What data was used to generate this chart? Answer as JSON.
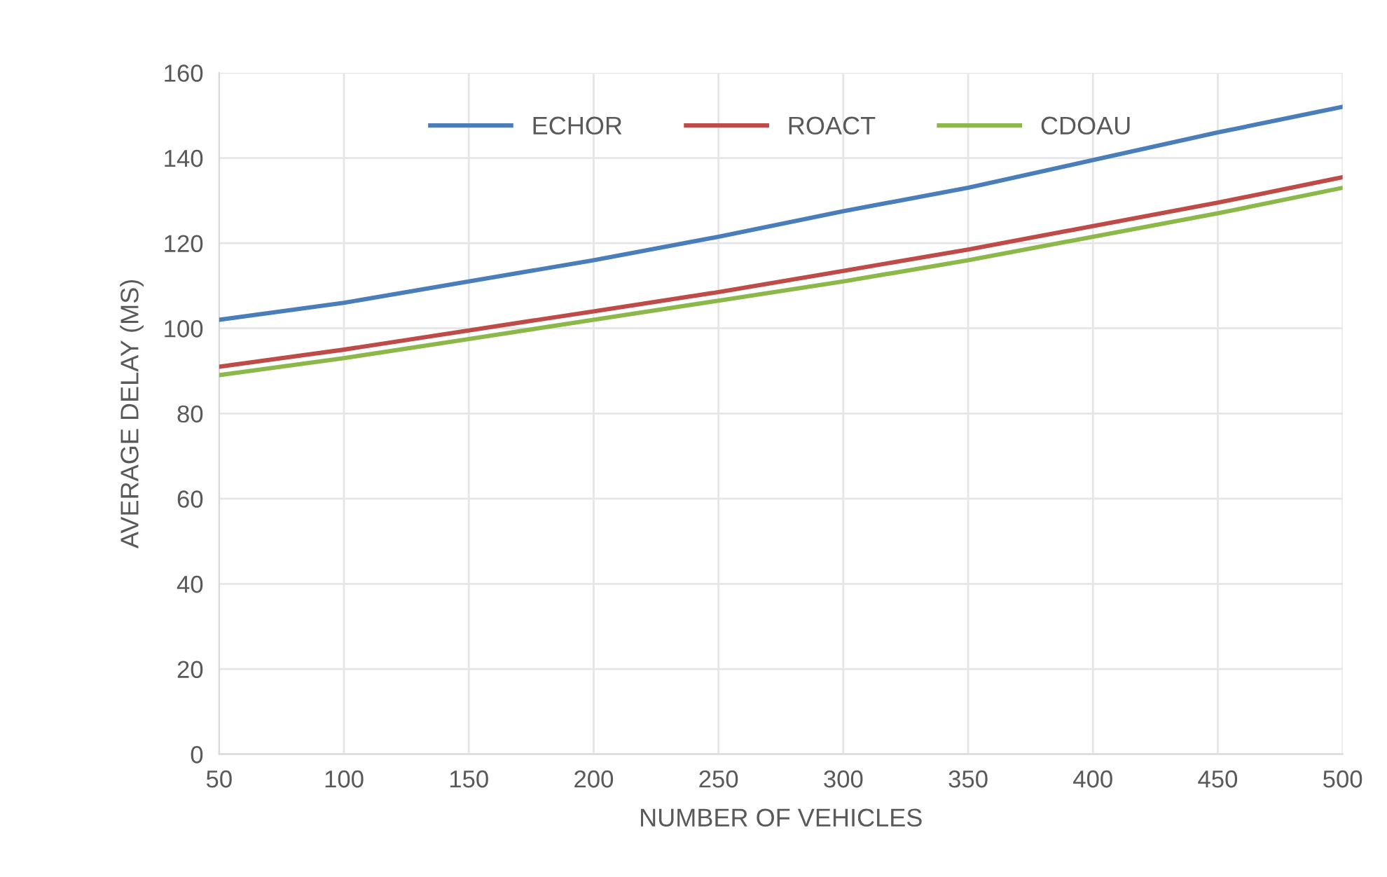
{
  "chart_data": {
    "type": "line",
    "xlabel": "NUMBER OF VEHICLES",
    "ylabel": "AVERAGE DELAY (MS)",
    "x": [
      50,
      100,
      150,
      200,
      250,
      300,
      350,
      400,
      450,
      500
    ],
    "series": [
      {
        "name": "ECHOR",
        "color": "#4a7ebb",
        "values": [
          102,
          106,
          111,
          116,
          121.5,
          127.5,
          133,
          139.5,
          146,
          152
        ]
      },
      {
        "name": "ROACT",
        "color": "#be4b48",
        "values": [
          91,
          95,
          99.5,
          104,
          108.5,
          113.5,
          118.5,
          124,
          129.5,
          135.5
        ]
      },
      {
        "name": "CDOAU",
        "color": "#8cb84a",
        "values": [
          89,
          93,
          97.5,
          102,
          106.5,
          111,
          116,
          121.5,
          127,
          133
        ]
      }
    ],
    "xlim": [
      50,
      500
    ],
    "xticks": [
      50,
      100,
      150,
      200,
      250,
      300,
      350,
      400,
      450,
      500
    ],
    "ylim": [
      0,
      160
    ],
    "yticks": [
      0,
      20,
      40,
      60,
      80,
      100,
      120,
      140,
      160
    ],
    "grid": true,
    "legend": "top",
    "marker": "none",
    "line_style": "solid"
  }
}
